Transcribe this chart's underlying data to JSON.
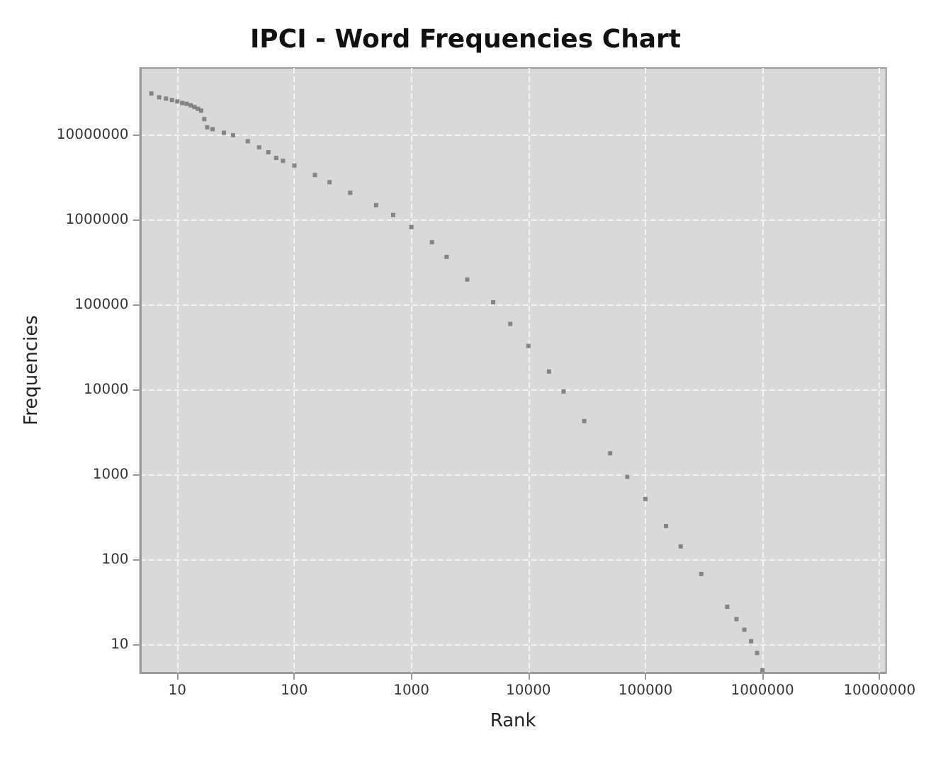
{
  "chart_data": {
    "type": "scatter",
    "title": "IPCI - Word Frequencies Chart",
    "xlabel": "Rank",
    "ylabel": "Frequencies",
    "log": "xy",
    "grid": true,
    "marker": "square",
    "xlim": [
      4.8,
      11400000
    ],
    "ylim": [
      4.7,
      62000000
    ],
    "xticks": [
      10,
      100,
      1000,
      10000,
      100000,
      1000000,
      10000000
    ],
    "yticks": [
      10,
      100,
      1000,
      10000,
      100000,
      1000000,
      10000000
    ],
    "series": [
      {
        "color": "#6e6e6e",
        "x": [
          6,
          7,
          8,
          9,
          10,
          11,
          12,
          13,
          14,
          15,
          16,
          17,
          18,
          20,
          25,
          30,
          40,
          50,
          60,
          70,
          80,
          100,
          150,
          200,
          300,
          500,
          700,
          1000,
          1500,
          2000,
          3000,
          5000,
          7000,
          10000,
          15000,
          20000,
          30000,
          50000,
          70000,
          100000,
          150000,
          200000,
          300000,
          500000,
          600000,
          700000,
          800000,
          900000,
          1000000
        ],
        "values": [
          31000000,
          28000000,
          27000000,
          26000000,
          25000000,
          24000000,
          23500000,
          22500000,
          21500000,
          20500000,
          19500000,
          15500000,
          12400000,
          11800000,
          10700000,
          10000000,
          8500000,
          7200000,
          6300000,
          5400000,
          5000000,
          4400000,
          3400000,
          2800000,
          2100000,
          1500000,
          1150000,
          830000,
          550000,
          370000,
          200000,
          108000,
          60000,
          33000,
          16500,
          9600,
          4300,
          1800,
          950,
          520,
          250,
          144,
          68,
          28,
          20,
          15,
          11,
          8,
          5
        ]
      }
    ]
  }
}
